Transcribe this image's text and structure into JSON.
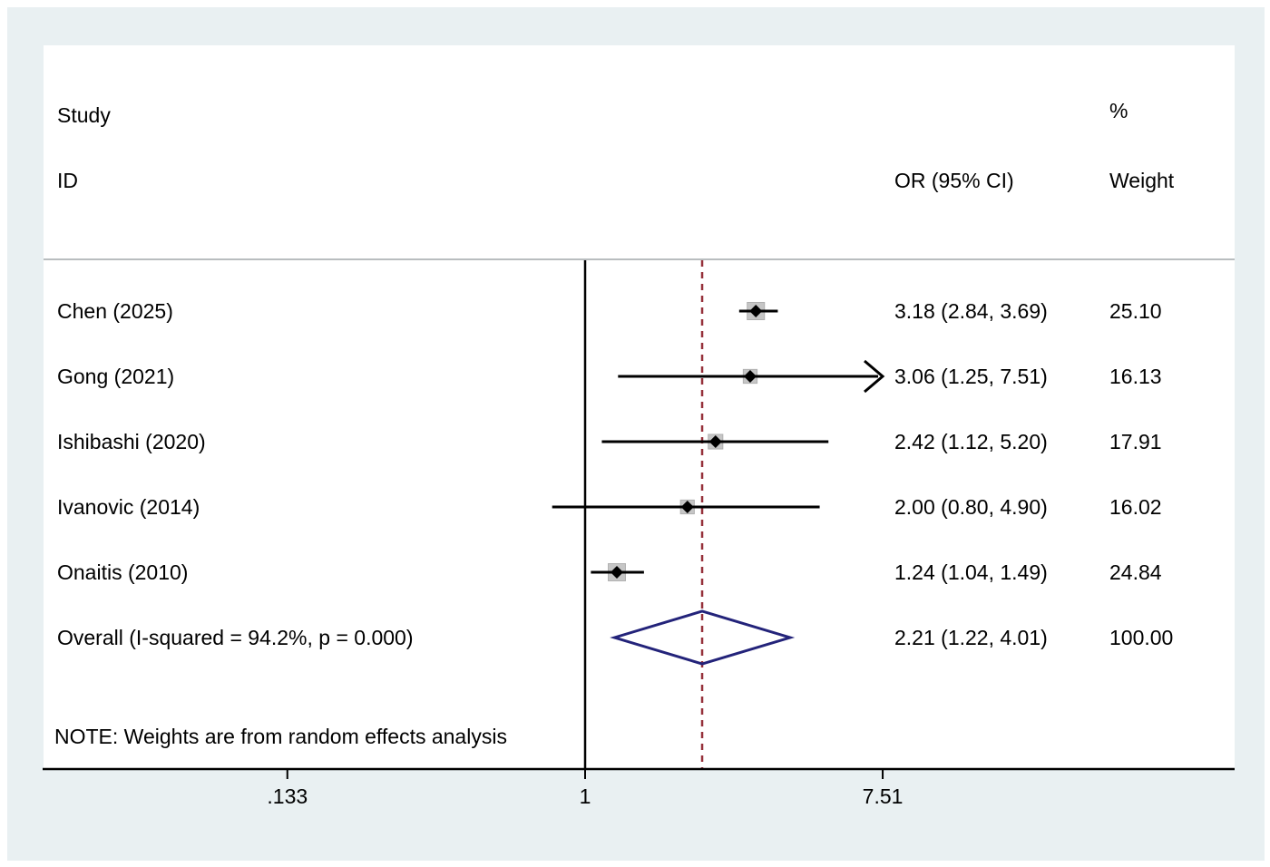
{
  "figure": {
    "header": {
      "study_line1": "Study",
      "study_line2": "ID",
      "percent_col": "%",
      "or_col": "OR (95% CI)",
      "weight_col": "Weight"
    },
    "note": "NOTE: Weights are from random effects analysis",
    "colors": {
      "panel_bg": "#e9f0f2",
      "plot_bg": "#ffffff",
      "separator": "#b9bdbf",
      "axis": "#000000",
      "null_line": "#000000",
      "overall_dashed": "#96303a",
      "ci_line": "#000000",
      "marker": "#000000",
      "weight_box": "#c6c6c6",
      "weight_box_edge": "#b0b0b0",
      "diamond": "#23237a"
    }
  },
  "chart_data": {
    "type": "forest",
    "title": "",
    "effect_measure": "OR",
    "x_axis": {
      "scale": "log",
      "range": [
        0.133,
        7.51
      ],
      "ticks": [
        {
          "label": ".133",
          "value": 0.133
        },
        {
          "label": "1",
          "value": 1
        },
        {
          "label": "7.51",
          "value": 7.51
        }
      ]
    },
    "grid": false,
    "legend": "none",
    "studies": [
      {
        "id": "Chen (2025)",
        "or": 3.18,
        "ci_low": 2.84,
        "ci_high": 3.69,
        "or_text": "3.18 (2.84, 3.69)",
        "weight": 25.1,
        "weight_text": "25.10",
        "arrow_high": false
      },
      {
        "id": "Gong (2021)",
        "or": 3.06,
        "ci_low": 1.25,
        "ci_high": 7.51,
        "or_text": "3.06 (1.25, 7.51)",
        "weight": 16.13,
        "weight_text": "16.13",
        "arrow_high": true
      },
      {
        "id": "Ishibashi (2020)",
        "or": 2.42,
        "ci_low": 1.12,
        "ci_high": 5.2,
        "or_text": "2.42 (1.12, 5.20)",
        "weight": 17.91,
        "weight_text": "17.91",
        "arrow_high": false
      },
      {
        "id": "Ivanovic (2014)",
        "or": 2.0,
        "ci_low": 0.8,
        "ci_high": 4.9,
        "or_text": "2.00 (0.80, 4.90)",
        "weight": 16.02,
        "weight_text": "16.02",
        "arrow_high": false
      },
      {
        "id": "Onaitis (2010)",
        "or": 1.24,
        "ci_low": 1.04,
        "ci_high": 1.49,
        "or_text": "1.24 (1.04, 1.49)",
        "weight": 24.84,
        "weight_text": "24.84",
        "arrow_high": false
      }
    ],
    "overall": {
      "label": "Overall  (I-squared = 94.2%, p = 0.000)",
      "or": 2.21,
      "ci_low": 1.22,
      "ci_high": 4.01,
      "or_text": "2.21 (1.22, 4.01)",
      "weight_text": "100.00",
      "i_squared": "94.2%",
      "p_value": "0.000"
    }
  }
}
